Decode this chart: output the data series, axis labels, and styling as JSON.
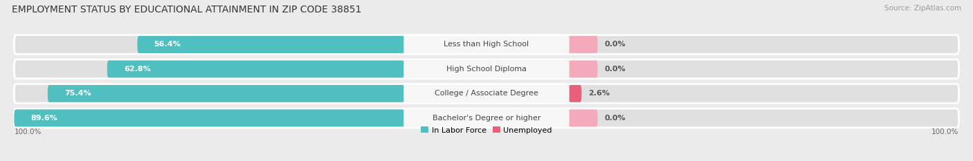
{
  "title": "EMPLOYMENT STATUS BY EDUCATIONAL ATTAINMENT IN ZIP CODE 38851",
  "source": "Source: ZipAtlas.com",
  "categories": [
    "Less than High School",
    "High School Diploma",
    "College / Associate Degree",
    "Bachelor's Degree or higher"
  ],
  "in_labor_force": [
    56.4,
    62.8,
    75.4,
    89.6
  ],
  "unemployed": [
    0.0,
    0.0,
    2.6,
    0.0
  ],
  "bar_color_labor": "#50bfbf",
  "bar_color_unemployed_full": "#e8607a",
  "bar_color_unemployed_light": "#f5aabb",
  "bg_color": "#ebebeb",
  "row_bg_color": "#e0e0e0",
  "label_box_color": "#f7f7f7",
  "title_fontsize": 10,
  "source_fontsize": 7.5,
  "bar_label_fontsize": 8,
  "cat_label_fontsize": 8,
  "axis_label_left": "100.0%",
  "axis_label_right": "100.0%",
  "max_val": 100.0,
  "lf_label_colors": [
    "#555555",
    "#ffffff",
    "#ffffff",
    "#ffffff"
  ]
}
